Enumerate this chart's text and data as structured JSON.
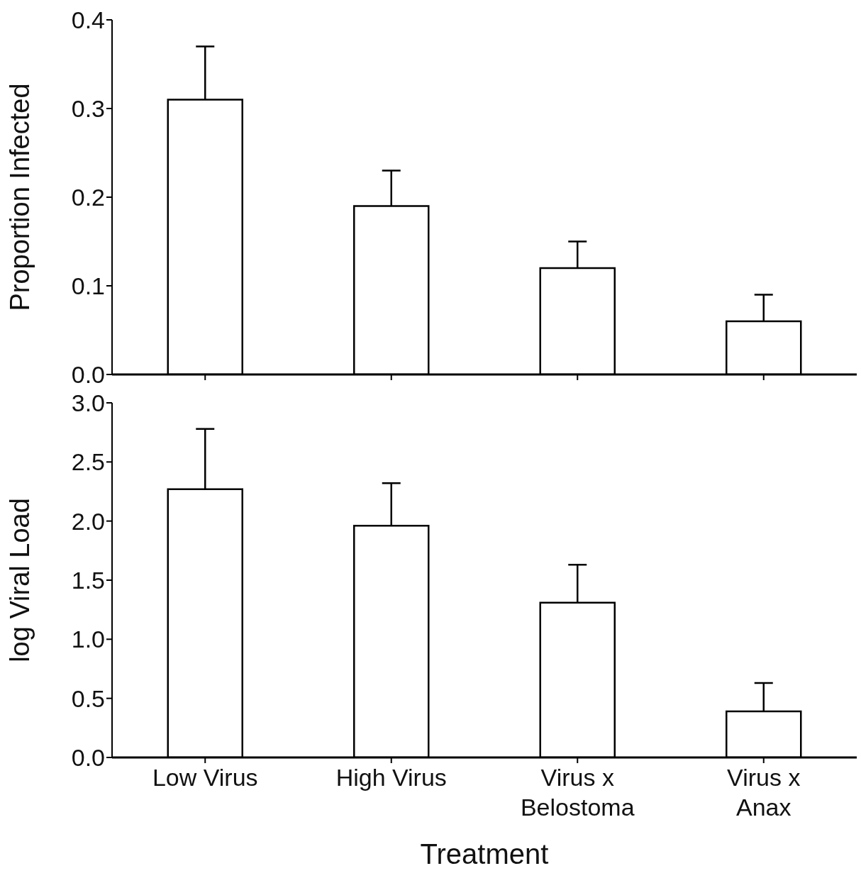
{
  "chart_data": [
    {
      "type": "bar",
      "ylabel": "Proportion Infected",
      "categories": [
        null,
        null,
        null,
        null
      ],
      "values": [
        0.31,
        0.19,
        0.12,
        0.06
      ],
      "errors": [
        [
          0.31,
          0.37
        ],
        [
          0.19,
          0.23
        ],
        [
          0.12,
          0.15
        ],
        [
          0.06,
          0.09
        ]
      ],
      "color": "#ffffff",
      "ylim": [
        0,
        0.4
      ],
      "yticks": [
        {
          "value": 0,
          "label": "0.0"
        },
        0.1,
        0.2,
        0.3,
        0.4
      ],
      "grid": false,
      "legend": false
    },
    {
      "type": "bar",
      "ylabel": "log Viral Load",
      "xlabel": "Treatment",
      "categories": [
        "Low Virus",
        "High Virus",
        "Virus x\nBelostoma",
        "Virus x\nAnax"
      ],
      "values": [
        2.27,
        1.96,
        1.31,
        0.39
      ],
      "errors": [
        [
          2.27,
          2.78
        ],
        [
          1.96,
          2.32
        ],
        [
          1.31,
          1.63
        ],
        [
          0.39,
          0.63
        ]
      ],
      "color": "#ffffff",
      "ylim": [
        0,
        3
      ],
      "yticks": [
        {
          "value": 0,
          "label": "0.0"
        },
        {
          "value": 0.5,
          "label": "0.5"
        },
        {
          "value": 1,
          "label": "1.0"
        },
        {
          "value": 1.5,
          "label": "1.5"
        },
        {
          "value": 2,
          "label": "2.0"
        },
        {
          "value": 2.5,
          "label": "2.5"
        },
        {
          "value": 3,
          "label": "3.0"
        }
      ],
      "grid": false,
      "legend": false
    }
  ]
}
